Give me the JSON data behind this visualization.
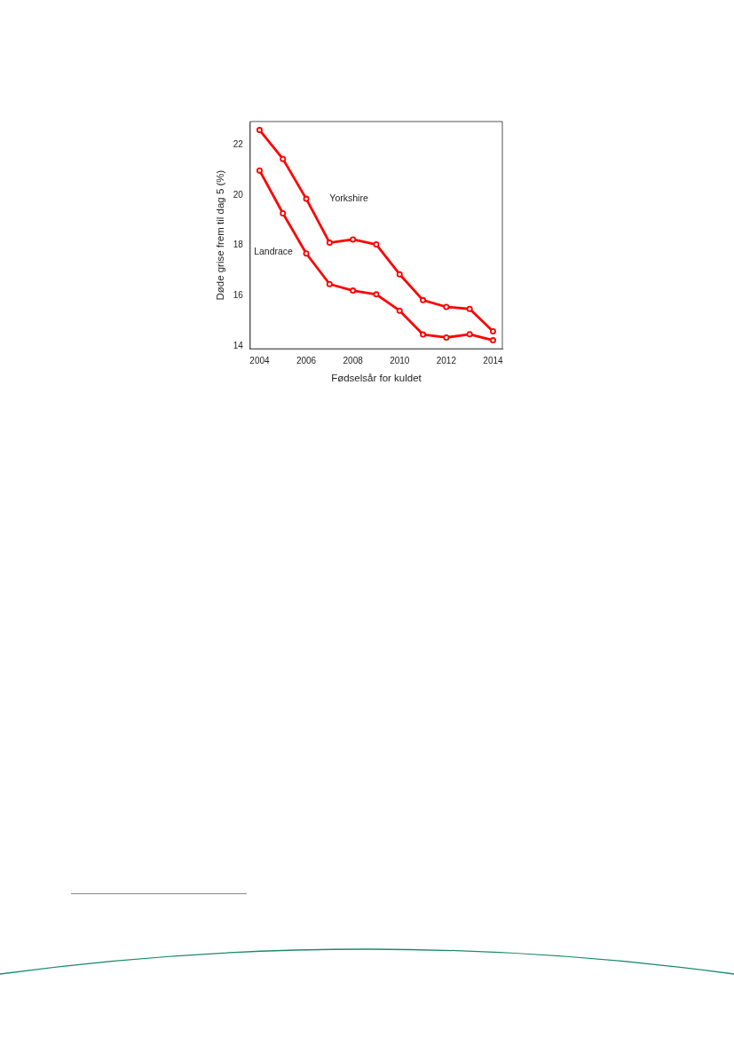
{
  "chart_data": {
    "type": "line",
    "xlabel": "Fødselsår for kuldet",
    "ylabel": "Døde grise frem til dag 5 (%)",
    "x": [
      2004,
      2005,
      2006,
      2007,
      2008,
      2009,
      2010,
      2011,
      2012,
      2013,
      2014
    ],
    "series": [
      {
        "name": "Yorkshire",
        "color": "#ff0000",
        "values": [
          22.6,
          21.45,
          19.86,
          18.11,
          18.24,
          18.04,
          16.85,
          15.82,
          15.55,
          15.47,
          14.58
        ]
      },
      {
        "name": "Landrace",
        "color": "#ff0000",
        "values": [
          20.99,
          19.28,
          17.68,
          16.46,
          16.2,
          16.05,
          15.4,
          14.45,
          14.33,
          14.46,
          14.22
        ]
      }
    ],
    "xlim": [
      2003.6,
      2014.4
    ],
    "xticks": [
      2004,
      2006,
      2008,
      2010,
      2012,
      2014
    ],
    "ylim": [
      13.88,
      22.94
    ],
    "yticks": [
      14,
      16,
      18,
      20,
      22
    ],
    "grid": false,
    "legend": false,
    "marker": "circle",
    "line_style": "solid"
  }
}
